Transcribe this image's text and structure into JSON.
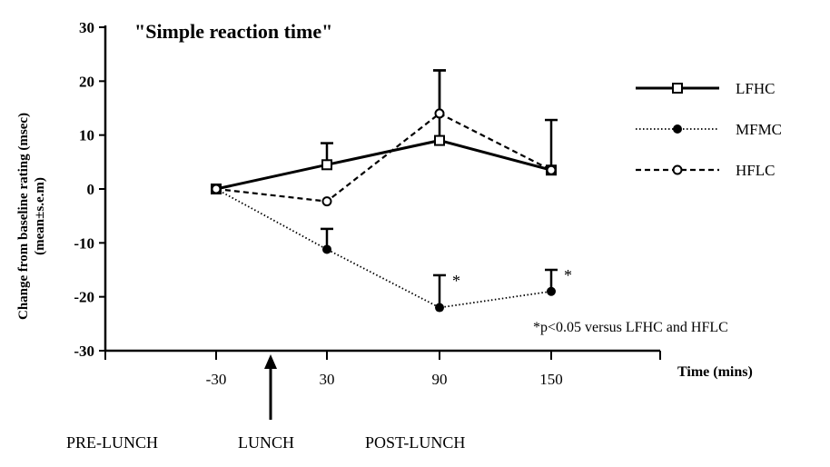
{
  "chart_data": {
    "type": "line",
    "title": "\"Simple reaction time\"",
    "ylabel_line1": "Change from baseline rating (msec)",
    "ylabel_line2": "(mean±s.e.m)",
    "xlabel": "Time (mins)",
    "x": [
      -30,
      30,
      90,
      150
    ],
    "x_tick_labels": [
      "-30",
      "30",
      "90",
      "150"
    ],
    "ylim": [
      -30,
      30
    ],
    "y_ticks": [
      30,
      20,
      10,
      0,
      -10,
      -20,
      -30
    ],
    "y_tick_labels": [
      "30",
      "20",
      "10",
      "0",
      "-10",
      "-20",
      "-30"
    ],
    "grid": false,
    "legend_position": "right",
    "series": [
      {
        "name": "LFHC",
        "style": "solid",
        "marker": "open-square",
        "values": [
          0,
          4.5,
          9,
          3.5
        ],
        "sem": [
          0,
          4,
          13,
          9.3
        ]
      },
      {
        "name": "MFMC",
        "style": "dotted",
        "marker": "filled-circle",
        "values": [
          0,
          -11.2,
          -22,
          -19
        ],
        "sem": [
          0,
          3.8,
          6,
          4
        ]
      },
      {
        "name": "HFLC",
        "style": "dashed",
        "marker": "open-circle",
        "values": [
          0,
          -2.3,
          14,
          3.5
        ],
        "sem": [
          0,
          0,
          8,
          0
        ]
      }
    ],
    "significance_marks": [
      {
        "x": 90,
        "series": "MFMC",
        "label": "*"
      },
      {
        "x": 150,
        "series": "MFMC",
        "label": "*"
      }
    ],
    "footnote": "*p<0.05 versus LFHC and HFLC",
    "phase_labels": [
      "PRE-LUNCH",
      "LUNCH",
      "POST-LUNCH"
    ]
  }
}
